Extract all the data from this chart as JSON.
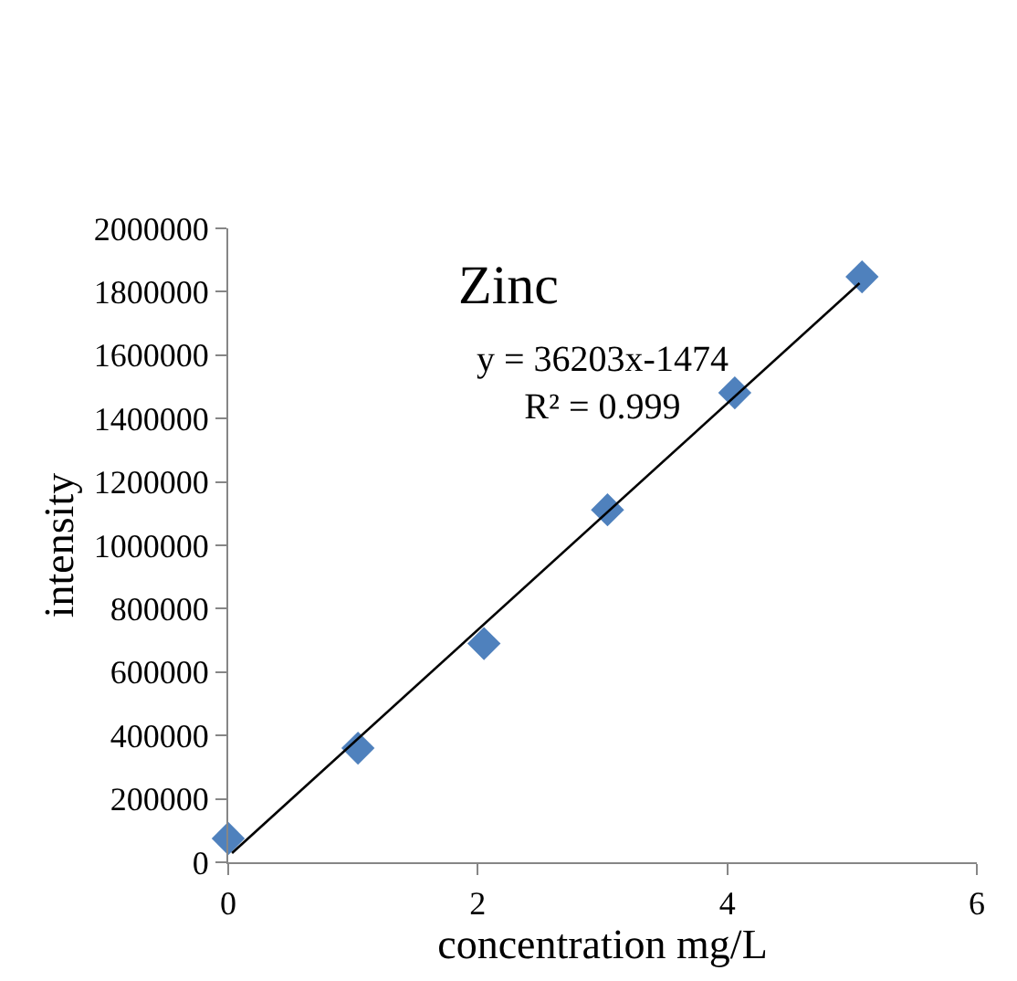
{
  "chart_data": {
    "type": "scatter",
    "title": "Zinc",
    "xlabel": "concentration mg/L",
    "ylabel": "intensity",
    "annotations": [
      "y = 36203x-1474\nR² = 0.999"
    ],
    "series": [
      {
        "color": "#4f81bd",
        "marker": "diamond",
        "x": [
          0,
          1.04,
          2.05,
          3.04,
          4.06,
          5.08
        ],
        "values": [
          75000,
          360000,
          690000,
          1112000,
          1481000,
          1847000
        ]
      },
      {
        "type": "line",
        "color": "#000000",
        "marker": "none",
        "line_style": "solid",
        "x": [
          0.03,
          5.06
        ],
        "values": [
          29000,
          1827000
        ]
      }
    ],
    "xlim": [
      0,
      6
    ],
    "xticks": [
      0,
      2,
      4,
      6
    ],
    "ylim": [
      0,
      2000000
    ],
    "yticks": [
      0,
      200000,
      400000,
      600000,
      800000,
      1000000,
      1200000,
      1400000,
      1600000,
      1800000,
      2000000
    ],
    "tick_labels": "xy"
  }
}
